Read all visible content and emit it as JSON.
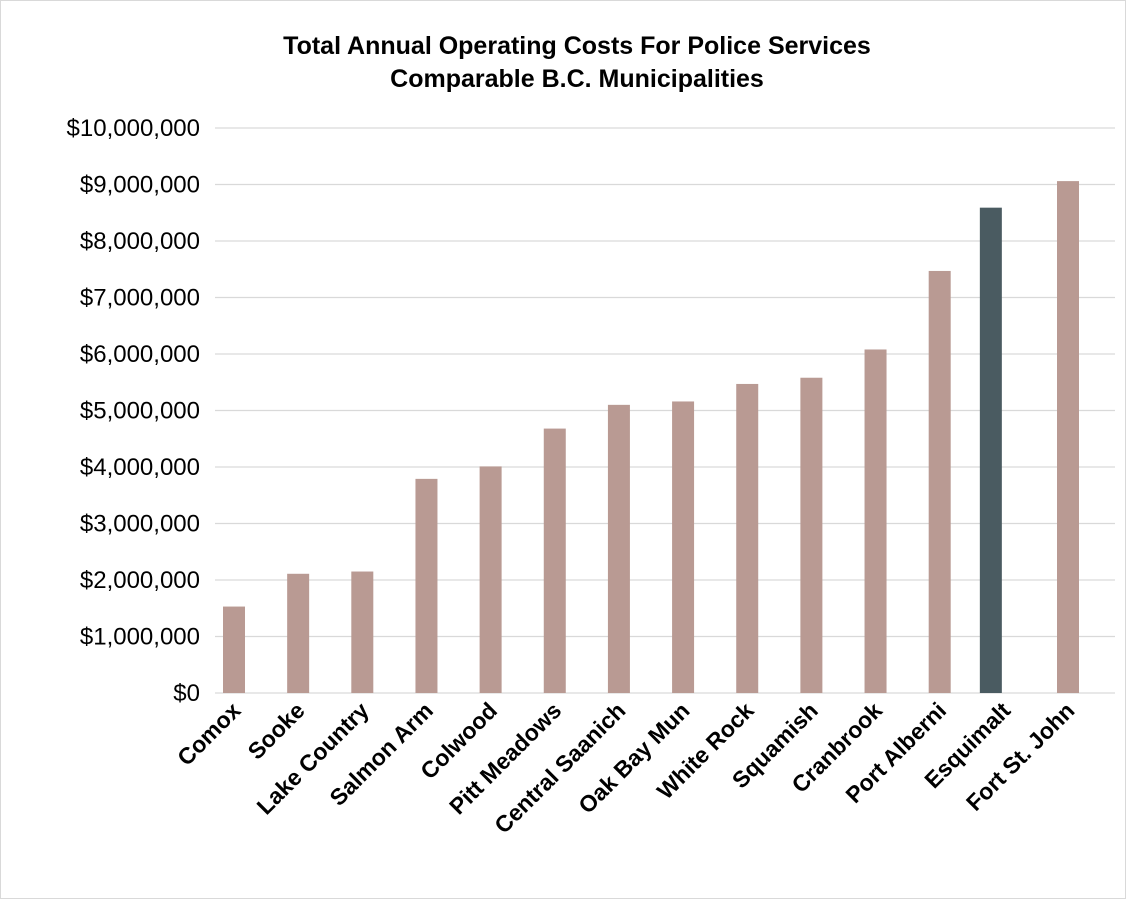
{
  "chart_data": {
    "type": "bar",
    "title": "Total Annual Operating Costs For Police Services",
    "subtitle": "Comparable B.C. Municipalities",
    "xlabel": "",
    "ylabel": "",
    "ylim": [
      0,
      10000000
    ],
    "yticks": [
      0,
      1000000,
      2000000,
      3000000,
      4000000,
      5000000,
      6000000,
      7000000,
      8000000,
      9000000,
      10000000
    ],
    "ytick_labels": [
      "$0",
      "$1,000,000",
      "$2,000,000",
      "$3,000,000",
      "$4,000,000",
      "$5,000,000",
      "$6,000,000",
      "$7,000,000",
      "$8,000,000",
      "$9,000,000",
      "$10,000,000"
    ],
    "grid": true,
    "legend": "none",
    "categories": [
      "Comox",
      "Sooke",
      "Lake Country",
      "Salmon Arm",
      "Colwood",
      "Pitt Meadows",
      "Central Saanich",
      "Oak Bay Mun",
      "White Rock",
      "Squamish",
      "Cranbrook",
      "Port Alberni",
      "Esquimalt",
      "Fort St. John"
    ],
    "values": [
      1530000,
      2110000,
      2150000,
      3790000,
      4010000,
      4680000,
      5100000,
      5160000,
      5470000,
      5580000,
      6080000,
      7470000,
      8590000,
      9060000
    ],
    "colors": {
      "default_bar": "#b99a93",
      "highlight_bar": "#4a5b61",
      "gridline": "#d9d9d9",
      "axis": "#d9d9d9"
    },
    "highlight_category": "Esquimalt"
  }
}
